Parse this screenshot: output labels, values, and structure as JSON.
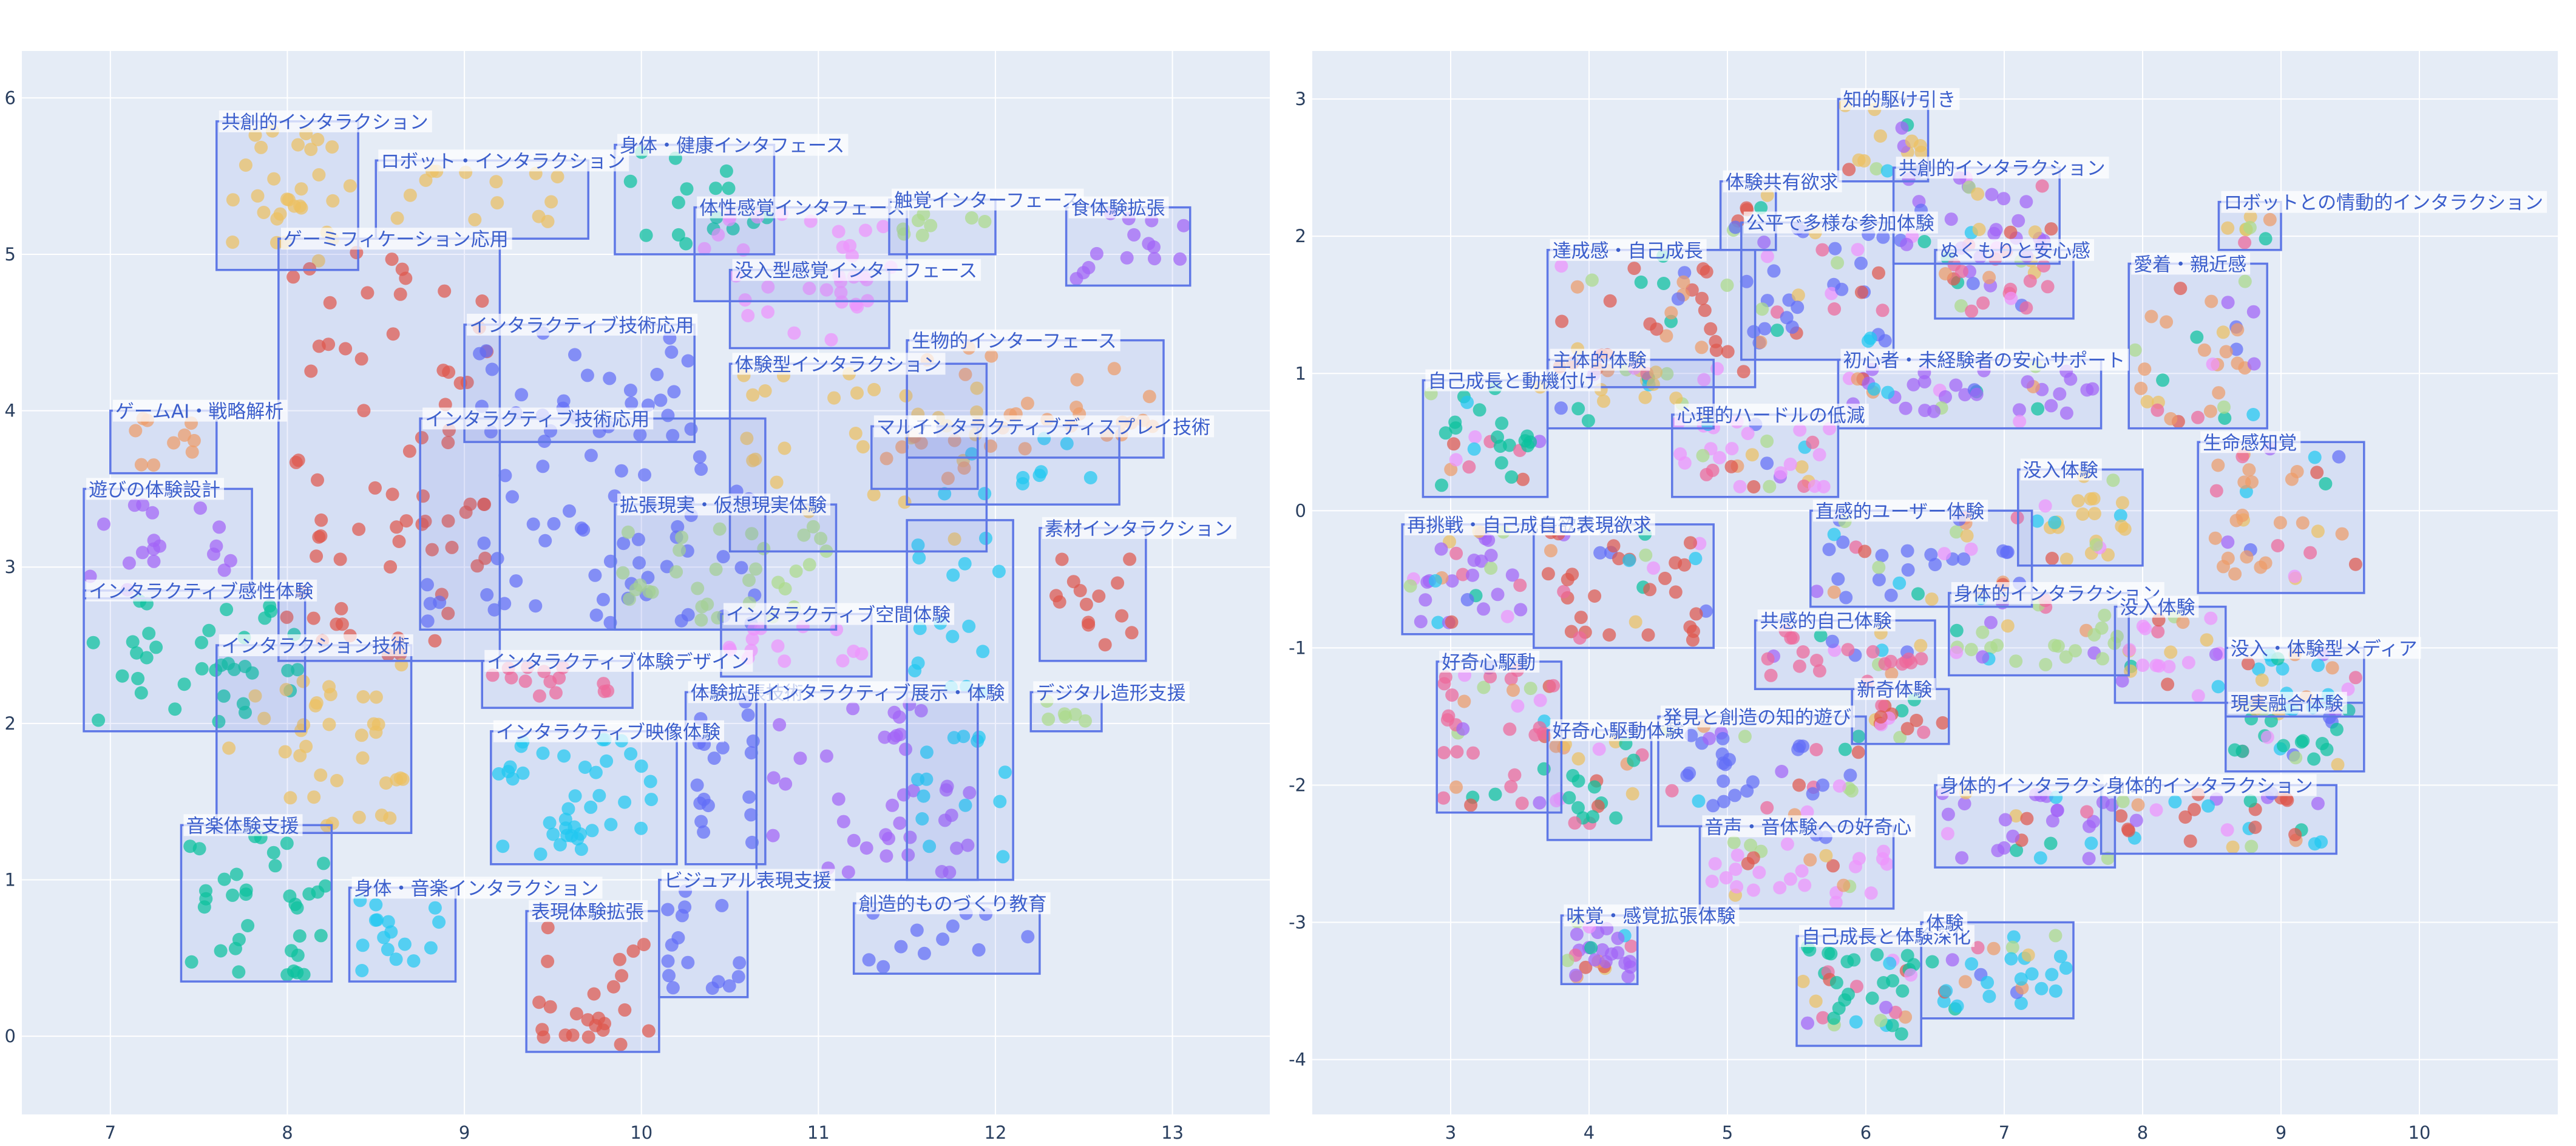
{
  "colors": {
    "plot_bg": "#e5ecf6",
    "grid": "#ffffff",
    "box_stroke": "#5f78e6",
    "label_text": "#3c5fcc",
    "palette": [
      "#ef553b",
      "#636efa",
      "#00cc96",
      "#ab63fa",
      "#ffa15a",
      "#19d3f3",
      "#ff6692",
      "#b6e880",
      "#ff97ff",
      "#fecb52"
    ]
  },
  "chart_data": [
    {
      "type": "scatter",
      "title": "",
      "xlabel": "",
      "ylabel": "",
      "xlim": [
        6.5,
        13.55
      ],
      "ylim": [
        -0.5,
        6.3
      ],
      "xticks": [
        7,
        8,
        9,
        10,
        11,
        12,
        13
      ],
      "yticks": [
        0,
        1,
        2,
        3,
        4,
        5,
        6
      ],
      "grid": true,
      "legend": "none",
      "clusters": [
        {
          "label": "共創的インタラクション",
          "x": [
            7.6,
            8.4
          ],
          "y": [
            4.9,
            5.85
          ],
          "color": 9,
          "n": 30
        },
        {
          "label": "ロボット・インタラクション",
          "x": [
            8.5,
            9.7
          ],
          "y": [
            5.1,
            5.6
          ],
          "color": 9,
          "n": 14
        },
        {
          "label": "身体・健康インタフェース",
          "x": [
            9.85,
            10.75
          ],
          "y": [
            5.0,
            5.7
          ],
          "color": 2,
          "n": 16
        },
        {
          "label": "体性感覚インタフェース",
          "x": [
            10.3,
            11.5
          ],
          "y": [
            4.7,
            5.3
          ],
          "color": 8,
          "n": 18
        },
        {
          "label": "触覚インターフェース",
          "x": [
            11.4,
            12.0
          ],
          "y": [
            5.0,
            5.35
          ],
          "color": 7,
          "n": 8
        },
        {
          "label": "食体験拡張",
          "x": [
            12.4,
            13.1
          ],
          "y": [
            4.8,
            5.3
          ],
          "color": 3,
          "n": 14
        },
        {
          "label": "ゲーミフィケーション応用",
          "x": [
            7.95,
            9.2
          ],
          "y": [
            2.4,
            5.1
          ],
          "color": 0,
          "n": 70
        },
        {
          "label": "没入型感覚インターフェース",
          "x": [
            10.5,
            11.4
          ],
          "y": [
            4.4,
            4.9
          ],
          "color": 8,
          "n": 16
        },
        {
          "label": "生物的インターフェース",
          "x": [
            11.5,
            12.95
          ],
          "y": [
            3.7,
            4.45
          ],
          "color": 4,
          "n": 26
        },
        {
          "label": "インタラクティブ技術応用",
          "x": [
            9.0,
            10.3
          ],
          "y": [
            3.8,
            4.55
          ],
          "color": 1,
          "n": 26
        },
        {
          "label": "体験型インタラクション",
          "x": [
            10.5,
            11.95
          ],
          "y": [
            3.1,
            4.3
          ],
          "color": 9,
          "n": 28
        },
        {
          "label": "ゲームAI・戦略解析",
          "x": [
            7.0,
            7.6
          ],
          "y": [
            3.6,
            4.0
          ],
          "color": 4,
          "n": 10
        },
        {
          "label": "インタラクティブ技術応用",
          "x": [
            8.75,
            10.7
          ],
          "y": [
            2.6,
            3.95
          ],
          "color": 1,
          "n": 60
        },
        {
          "label": "マルチ",
          "x": [
            11.3,
            11.9
          ],
          "y": [
            3.5,
            3.9
          ],
          "color": 4,
          "n": 6
        },
        {
          "label": "インタラクティブディスプレイ技術",
          "x": [
            11.5,
            12.7
          ],
          "y": [
            3.4,
            3.9
          ],
          "color": 5,
          "n": 10
        },
        {
          "label": "遊びの体験設計",
          "x": [
            6.85,
            7.8
          ],
          "y": [
            2.8,
            3.5
          ],
          "color": 3,
          "n": 18
        },
        {
          "label": "拡張現実・仮想現実体験",
          "x": [
            9.85,
            11.1
          ],
          "y": [
            2.6,
            3.4
          ],
          "color": 7,
          "n": 32
        },
        {
          "label": "素材インタラクション",
          "x": [
            12.25,
            12.85
          ],
          "y": [
            2.4,
            3.25
          ],
          "color": 0,
          "n": 14
        },
        {
          "label": "インタラクティブ感性体験",
          "x": [
            6.85,
            8.1
          ],
          "y": [
            1.95,
            2.85
          ],
          "color": 2,
          "n": 36
        },
        {
          "label": "インタラクティブ空間体験",
          "x": [
            10.45,
            11.3
          ],
          "y": [
            2.3,
            2.7
          ],
          "color": 8,
          "n": 14
        },
        {
          "label": "インタラクション技術",
          "x": [
            7.6,
            8.7
          ],
          "y": [
            1.3,
            2.5
          ],
          "color": 9,
          "n": 36
        },
        {
          "label": "インタラクティブ体験デザイン",
          "x": [
            9.1,
            9.95
          ],
          "y": [
            2.1,
            2.4
          ],
          "color": 6,
          "n": 14
        },
        {
          "label": "デジタル造形支援",
          "x": [
            12.2,
            12.6
          ],
          "y": [
            1.95,
            2.2
          ],
          "color": 7,
          "n": 6
        },
        {
          "label": "体験拡張技術",
          "x": [
            10.25,
            10.7
          ],
          "y": [
            1.1,
            2.2
          ],
          "color": 1,
          "n": 18
        },
        {
          "label": "インタラクティブ展示・体験",
          "x": [
            10.65,
            11.9
          ],
          "y": [
            1.0,
            2.2
          ],
          "color": 3,
          "n": 40
        },
        {
          "label": "インタラクティブ映像体験",
          "x": [
            9.15,
            10.2
          ],
          "y": [
            1.1,
            1.95
          ],
          "color": 5,
          "n": 40
        },
        {
          "label": "音楽体験支援",
          "x": [
            7.4,
            8.25
          ],
          "y": [
            0.35,
            1.35
          ],
          "color": 2,
          "n": 36
        },
        {
          "label": "身体・音楽インタラクション",
          "x": [
            8.35,
            8.95
          ],
          "y": [
            0.35,
            0.95
          ],
          "color": 5,
          "n": 16
        },
        {
          "label": "表現体験拡張",
          "x": [
            9.35,
            10.1
          ],
          "y": [
            -0.1,
            0.8
          ],
          "color": 0,
          "n": 24
        },
        {
          "label": "ビジュアル表現支援",
          "x": [
            10.1,
            10.6
          ],
          "y": [
            0.25,
            1.0
          ],
          "color": 1,
          "n": 16
        },
        {
          "label": "創造的ものづくり教育",
          "x": [
            11.2,
            12.25
          ],
          "y": [
            0.4,
            0.85
          ],
          "color": 1,
          "n": 12
        },
        {
          "label": "",
          "x": [
            11.5,
            12.1
          ],
          "y": [
            1.0,
            3.3
          ],
          "color": 5,
          "n": 30
        }
      ]
    },
    {
      "type": "scatter",
      "title": "",
      "xlabel": "",
      "ylabel": "",
      "xlim": [
        2.0,
        11.0
      ],
      "ylim": [
        -4.4,
        3.35
      ],
      "xticks": [
        3,
        4,
        5,
        6,
        7,
        8,
        9,
        10
      ],
      "yticks": [
        -4,
        -3,
        -2,
        -1,
        0,
        1,
        2,
        3
      ],
      "grid": true,
      "legend": "none",
      "clusters": [
        {
          "label": "知的駆け引き",
          "x": [
            5.8,
            6.45
          ],
          "y": [
            2.4,
            3.0
          ],
          "color": 9,
          "n": 16
        },
        {
          "label": "体験共有欲求",
          "x": [
            4.95,
            5.35
          ],
          "y": [
            1.9,
            2.4
          ],
          "color": 0,
          "n": 8
        },
        {
          "label": "共創的インタラクション",
          "x": [
            6.2,
            7.4
          ],
          "y": [
            1.8,
            2.5
          ],
          "color": 3,
          "n": 34
        },
        {
          "label": "ロボットとの情動的インタラクション",
          "x": [
            8.55,
            9.0
          ],
          "y": [
            1.9,
            2.25
          ],
          "color": 9,
          "n": 8
        },
        {
          "label": "公平で多様な参加体験",
          "x": [
            5.1,
            6.2
          ],
          "y": [
            1.1,
            2.1
          ],
          "color": 1,
          "n": 38
        },
        {
          "label": "達成感・自己成長",
          "x": [
            3.7,
            5.2
          ],
          "y": [
            0.9,
            1.9
          ],
          "color": 0,
          "n": 40
        },
        {
          "label": "ぬくもりと安心感",
          "x": [
            6.5,
            7.5
          ],
          "y": [
            1.4,
            1.9
          ],
          "color": 6,
          "n": 26
        },
        {
          "label": "愛着・親近感",
          "x": [
            7.9,
            8.9
          ],
          "y": [
            0.6,
            1.8
          ],
          "color": 4,
          "n": 34
        },
        {
          "label": "主体的体験",
          "x": [
            3.7,
            4.9
          ],
          "y": [
            0.6,
            1.1
          ],
          "color": 9,
          "n": 22
        },
        {
          "label": "初心者・未経験者の安心サポート",
          "x": [
            5.8,
            7.7
          ],
          "y": [
            0.6,
            1.1
          ],
          "color": 3,
          "n": 40
        },
        {
          "label": "自己成長と動機付け",
          "x": [
            2.8,
            3.7
          ],
          "y": [
            0.1,
            0.95
          ],
          "color": 2,
          "n": 30
        },
        {
          "label": "心理的ハードルの低減",
          "x": [
            4.6,
            5.8
          ],
          "y": [
            0.1,
            0.7
          ],
          "color": 8,
          "n": 36
        },
        {
          "label": "生命感知覚",
          "x": [
            8.4,
            9.6
          ],
          "y": [
            -0.6,
            0.5
          ],
          "color": 4,
          "n": 36
        },
        {
          "label": "没入体験",
          "x": [
            7.1,
            8.0
          ],
          "y": [
            -0.4,
            0.3
          ],
          "color": 9,
          "n": 24
        },
        {
          "label": "再挑戦・自己成長欲求",
          "x": [
            2.65,
            3.6
          ],
          "y": [
            -0.9,
            -0.1
          ],
          "color": 3,
          "n": 34
        },
        {
          "label": "自己表現欲求",
          "x": [
            3.6,
            4.9
          ],
          "y": [
            -1.0,
            -0.1
          ],
          "color": 0,
          "n": 40
        },
        {
          "label": "直感的ユーザー体験",
          "x": [
            5.6,
            7.2
          ],
          "y": [
            -0.7,
            0.0
          ],
          "color": 1,
          "n": 40
        },
        {
          "label": "身体的インタラクション",
          "x": [
            6.6,
            7.9
          ],
          "y": [
            -1.2,
            -0.6
          ],
          "color": 7,
          "n": 30
        },
        {
          "label": "共感的自己体験",
          "x": [
            5.2,
            6.5
          ],
          "y": [
            -1.3,
            -0.8
          ],
          "color": 6,
          "n": 30
        },
        {
          "label": "没入体験",
          "x": [
            7.8,
            8.6
          ],
          "y": [
            -1.4,
            -0.7
          ],
          "color": 8,
          "n": 24
        },
        {
          "label": "没入・体験型メディア",
          "x": [
            8.6,
            9.6
          ],
          "y": [
            -1.5,
            -1.0
          ],
          "color": 5,
          "n": 24
        },
        {
          "label": "好奇心駆動",
          "x": [
            2.9,
            3.8
          ],
          "y": [
            -2.2,
            -1.1
          ],
          "color": 6,
          "n": 40
        },
        {
          "label": "新奇体験",
          "x": [
            5.9,
            6.6
          ],
          "y": [
            -1.7,
            -1.3
          ],
          "color": 0,
          "n": 16
        },
        {
          "label": "現実融合体験",
          "x": [
            8.6,
            9.6
          ],
          "y": [
            -1.9,
            -1.4
          ],
          "color": 2,
          "n": 24
        },
        {
          "label": "好奇心駆動体験",
          "x": [
            3.7,
            4.45
          ],
          "y": [
            -2.4,
            -1.6
          ],
          "color": 2,
          "n": 26
        },
        {
          "label": "発見と創造の知的遊び",
          "x": [
            4.5,
            6.0
          ],
          "y": [
            -2.3,
            -1.5
          ],
          "color": 1,
          "n": 40
        },
        {
          "label": "身体的インタラクション",
          "x": [
            6.5,
            7.8
          ],
          "y": [
            -2.6,
            -2.0
          ],
          "color": 3,
          "n": 30
        },
        {
          "label": "身体的インタラクション",
          "x": [
            7.7,
            9.4
          ],
          "y": [
            -2.5,
            -2.0
          ],
          "color": 0,
          "n": 34
        },
        {
          "label": "音声・音体験への好奇心",
          "x": [
            4.8,
            6.2
          ],
          "y": [
            -2.9,
            -2.3
          ],
          "color": 8,
          "n": 34
        },
        {
          "label": "味覚・感覚拡張体験",
          "x": [
            3.8,
            4.35
          ],
          "y": [
            -3.45,
            -2.95
          ],
          "color": 3,
          "n": 28
        },
        {
          "label": "自己成長と体験深化",
          "x": [
            5.5,
            6.4
          ],
          "y": [
            -3.9,
            -3.1
          ],
          "color": 2,
          "n": 40
        },
        {
          "label": "体験",
          "x": [
            6.4,
            7.5
          ],
          "y": [
            -3.7,
            -3.0
          ],
          "color": 5,
          "n": 30
        }
      ]
    }
  ]
}
